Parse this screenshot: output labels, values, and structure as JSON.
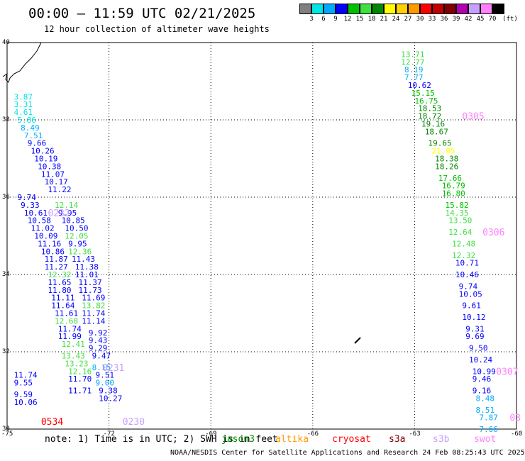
{
  "title": "00:00 – 11:59 UTC 02/21/2025",
  "subtitle": "12 hour collection of altimeter wave heights",
  "colorbar": {
    "unit": "(ft)",
    "labels": [
      "3",
      "6",
      "9",
      "12",
      "15",
      "18",
      "21",
      "24",
      "27",
      "30",
      "33",
      "36",
      "39",
      "42",
      "45",
      "70"
    ],
    "colors": [
      "#808080",
      "#00e5e5",
      "#00aaff",
      "#0000ff",
      "#00c000",
      "#40e040",
      "#008800",
      "#ffff00",
      "#ffd000",
      "#ff9900",
      "#ff0000",
      "#c00000",
      "#800000",
      "#b000b0",
      "#c8a0ff",
      "#ff80ff",
      "#000000"
    ]
  },
  "note_text": "note: 1) Time is in UTC; 2) SWH is in feet",
  "satellites": [
    {
      "name": "jason3",
      "color": "#008800"
    },
    {
      "name": "altika",
      "color": "#ff9900"
    },
    {
      "name": "cryosat",
      "color": "#ff0000"
    },
    {
      "name": "s3a",
      "color": "#800000"
    },
    {
      "name": "s3b",
      "color": "#c8a0ff"
    },
    {
      "name": "swot",
      "color": "#ff80ff"
    }
  ],
  "footer": "NOAA/NESDIS Center for Satellite Applications and Research    24 Feb 08:25:43 UTC 2025",
  "chart_data": {
    "type": "scatter",
    "xlim": [
      -75,
      -60
    ],
    "ylim": [
      30,
      40
    ],
    "x_ticks": [
      "-75",
      "-72",
      "-69",
      "-66",
      "-63",
      "-60"
    ],
    "y_ticks": [
      "40",
      "38",
      "36",
      "34",
      "32",
      "30"
    ],
    "grid": true,
    "units": "ft",
    "times": [
      {
        "label": "0232",
        "x": -73.8,
        "y": 35.6,
        "color": "#c8a0ff"
      },
      {
        "label": "0231",
        "x": -72.2,
        "y": 31.6,
        "color": "#c8a0ff"
      },
      {
        "label": "0230",
        "x": -71.6,
        "y": 30.2,
        "color": "#c8a0ff"
      },
      {
        "label": "0534",
        "x": -74.0,
        "y": 30.2,
        "color": "#ff0000"
      },
      {
        "label": "0305",
        "x": -61.6,
        "y": 38.1,
        "color": "#ff80ff"
      },
      {
        "label": "0306",
        "x": -61.0,
        "y": 35.1,
        "color": "#ff80ff"
      },
      {
        "label": "0307",
        "x": -60.6,
        "y": 31.5,
        "color": "#ff80ff"
      },
      {
        "label": "03",
        "x": -60.2,
        "y": 30.3,
        "color": "#ff80ff"
      }
    ],
    "series": [
      {
        "name": "track-a",
        "points": [
          {
            "x": -74.8,
            "y": 38.6,
            "v": 3.87,
            "c": "#00e5e5"
          },
          {
            "x": -74.8,
            "y": 38.4,
            "v": 3.31,
            "c": "#00e5e5"
          },
          {
            "x": -74.8,
            "y": 38.2,
            "v": 4.61,
            "c": "#00e5e5"
          },
          {
            "x": -74.7,
            "y": 38.0,
            "v": 5.86,
            "c": "#00e5e5"
          },
          {
            "x": -74.6,
            "y": 37.8,
            "v": 8.49,
            "c": "#00aaff"
          },
          {
            "x": -74.5,
            "y": 37.6,
            "v": 7.51,
            "c": "#00aaff"
          },
          {
            "x": -74.4,
            "y": 37.4,
            "v": 9.66,
            "c": "#0000ff"
          },
          {
            "x": -74.3,
            "y": 37.2,
            "v": 10.26,
            "c": "#0000ff"
          },
          {
            "x": -74.2,
            "y": 37.0,
            "v": 10.19,
            "c": "#0000ff"
          },
          {
            "x": -74.1,
            "y": 36.8,
            "v": 10.38,
            "c": "#0000ff"
          },
          {
            "x": -74.0,
            "y": 36.6,
            "v": 11.07,
            "c": "#0000ff"
          },
          {
            "x": -73.9,
            "y": 36.4,
            "v": 10.17,
            "c": "#0000ff"
          },
          {
            "x": -73.8,
            "y": 36.2,
            "v": 11.22,
            "c": "#0000ff"
          },
          {
            "x": -73.6,
            "y": 35.8,
            "v": 12.14,
            "c": "#40e040"
          },
          {
            "x": -73.5,
            "y": 35.6,
            "v": 9.95,
            "c": "#0000ff"
          },
          {
            "x": -73.4,
            "y": 35.4,
            "v": 10.85,
            "c": "#0000ff"
          },
          {
            "x": -73.3,
            "y": 35.2,
            "v": 10.5,
            "c": "#0000ff"
          },
          {
            "x": -73.3,
            "y": 35.0,
            "v": 12.05,
            "c": "#40e040"
          },
          {
            "x": -73.2,
            "y": 34.8,
            "v": 9.95,
            "c": "#0000ff"
          },
          {
            "x": -73.2,
            "y": 34.6,
            "v": 12.36,
            "c": "#40e040"
          },
          {
            "x": -73.1,
            "y": 34.4,
            "v": 11.43,
            "c": "#0000ff"
          },
          {
            "x": -73.0,
            "y": 34.2,
            "v": 11.38,
            "c": "#0000ff"
          },
          {
            "x": -73.0,
            "y": 34.0,
            "v": 11.01,
            "c": "#0000ff"
          },
          {
            "x": -72.9,
            "y": 33.8,
            "v": 11.37,
            "c": "#0000ff"
          },
          {
            "x": -72.9,
            "y": 33.6,
            "v": 11.73,
            "c": "#0000ff"
          },
          {
            "x": -72.8,
            "y": 33.4,
            "v": 11.69,
            "c": "#0000ff"
          },
          {
            "x": -72.8,
            "y": 33.2,
            "v": 13.82,
            "c": "#40e040"
          },
          {
            "x": -72.8,
            "y": 33.0,
            "v": 11.74,
            "c": "#0000ff"
          },
          {
            "x": -72.8,
            "y": 32.8,
            "v": 11.14,
            "c": "#0000ff"
          },
          {
            "x": -72.6,
            "y": 32.5,
            "v": 9.92,
            "c": "#0000ff"
          },
          {
            "x": -72.6,
            "y": 32.3,
            "v": 9.43,
            "c": "#0000ff"
          },
          {
            "x": -72.6,
            "y": 32.1,
            "v": 9.29,
            "c": "#0000ff"
          },
          {
            "x": -72.5,
            "y": 31.9,
            "v": 9.47,
            "c": "#0000ff"
          },
          {
            "x": -72.5,
            "y": 31.6,
            "v": 8.15,
            "c": "#00aaff"
          },
          {
            "x": -72.4,
            "y": 31.4,
            "v": 9.51,
            "c": "#0000ff"
          },
          {
            "x": -72.4,
            "y": 31.2,
            "v": 9.0,
            "c": "#00aaff"
          },
          {
            "x": -72.3,
            "y": 31.0,
            "v": 9.38,
            "c": "#0000ff"
          },
          {
            "x": -72.3,
            "y": 30.8,
            "v": 10.27,
            "c": "#0000ff"
          }
        ]
      },
      {
        "name": "track-b",
        "points": [
          {
            "x": -74.7,
            "y": 36.0,
            "v": 9.74,
            "c": "#0000ff"
          },
          {
            "x": -74.6,
            "y": 35.8,
            "v": 9.33,
            "c": "#0000ff"
          },
          {
            "x": -74.5,
            "y": 35.6,
            "v": 10.61,
            "c": "#0000ff"
          },
          {
            "x": -74.4,
            "y": 35.4,
            "v": 10.58,
            "c": "#0000ff"
          },
          {
            "x": -74.3,
            "y": 35.2,
            "v": 11.02,
            "c": "#0000ff"
          },
          {
            "x": -74.2,
            "y": 35.0,
            "v": 10.09,
            "c": "#0000ff"
          },
          {
            "x": -74.1,
            "y": 34.8,
            "v": 11.16,
            "c": "#0000ff"
          },
          {
            "x": -74.0,
            "y": 34.6,
            "v": 10.86,
            "c": "#0000ff"
          },
          {
            "x": -73.9,
            "y": 34.4,
            "v": 11.87,
            "c": "#0000ff"
          },
          {
            "x": -73.9,
            "y": 34.2,
            "v": 11.27,
            "c": "#0000ff"
          },
          {
            "x": -73.8,
            "y": 34.0,
            "v": 12.32,
            "c": "#40e040"
          },
          {
            "x": -73.8,
            "y": 33.8,
            "v": 11.65,
            "c": "#0000ff"
          },
          {
            "x": -73.8,
            "y": 33.6,
            "v": 11.8,
            "c": "#0000ff"
          },
          {
            "x": -73.7,
            "y": 33.4,
            "v": 11.11,
            "c": "#0000ff"
          },
          {
            "x": -73.7,
            "y": 33.2,
            "v": 11.64,
            "c": "#0000ff"
          },
          {
            "x": -73.6,
            "y": 33.0,
            "v": 11.61,
            "c": "#0000ff"
          },
          {
            "x": -73.6,
            "y": 32.8,
            "v": 12.68,
            "c": "#40e040"
          },
          {
            "x": -73.5,
            "y": 32.6,
            "v": 11.74,
            "c": "#0000ff"
          },
          {
            "x": -73.5,
            "y": 32.4,
            "v": 11.99,
            "c": "#0000ff"
          },
          {
            "x": -73.4,
            "y": 32.2,
            "v": 12.41,
            "c": "#40e040"
          },
          {
            "x": -73.4,
            "y": 31.9,
            "v": 13.43,
            "c": "#40e040"
          },
          {
            "x": -73.3,
            "y": 31.7,
            "v": 13.23,
            "c": "#40e040"
          },
          {
            "x": -73.2,
            "y": 31.5,
            "v": 12.16,
            "c": "#40e040"
          },
          {
            "x": -73.2,
            "y": 31.3,
            "v": 11.7,
            "c": "#0000ff"
          },
          {
            "x": -73.2,
            "y": 31.0,
            "v": 11.71,
            "c": "#0000ff"
          }
        ]
      },
      {
        "name": "track-c",
        "points": [
          {
            "x": -74.8,
            "y": 31.4,
            "v": 11.74,
            "c": "#0000ff"
          },
          {
            "x": -74.8,
            "y": 31.2,
            "v": 9.55,
            "c": "#0000ff"
          },
          {
            "x": -74.8,
            "y": 30.9,
            "v": 9.59,
            "c": "#0000ff"
          },
          {
            "x": -74.8,
            "y": 30.7,
            "v": 10.06,
            "c": "#0000ff"
          }
        ]
      },
      {
        "name": "track-d",
        "points": [
          {
            "x": -63.4,
            "y": 39.7,
            "v": 13.71,
            "c": "#40e040"
          },
          {
            "x": -63.4,
            "y": 39.5,
            "v": 12.77,
            "c": "#40e040"
          },
          {
            "x": -63.3,
            "y": 39.3,
            "v": 8.19,
            "c": "#00aaff"
          },
          {
            "x": -63.3,
            "y": 39.1,
            "v": 7.77,
            "c": "#00aaff"
          },
          {
            "x": -63.2,
            "y": 38.9,
            "v": 10.62,
            "c": "#0000ff"
          },
          {
            "x": -63.1,
            "y": 38.7,
            "v": 15.15,
            "c": "#00c000"
          },
          {
            "x": -63.0,
            "y": 38.5,
            "v": 16.75,
            "c": "#00c000"
          },
          {
            "x": -62.9,
            "y": 38.3,
            "v": 18.53,
            "c": "#008800"
          },
          {
            "x": -62.9,
            "y": 38.1,
            "v": 18.72,
            "c": "#008800"
          },
          {
            "x": -62.8,
            "y": 37.9,
            "v": 19.16,
            "c": "#008800"
          },
          {
            "x": -62.7,
            "y": 37.7,
            "v": 18.67,
            "c": "#008800"
          },
          {
            "x": -62.6,
            "y": 37.4,
            "v": 19.65,
            "c": "#008800"
          },
          {
            "x": -62.5,
            "y": 37.2,
            "v": 21.95,
            "c": "#ffff00"
          },
          {
            "x": -62.4,
            "y": 37.0,
            "v": 18.38,
            "c": "#008800"
          },
          {
            "x": -62.4,
            "y": 36.8,
            "v": 18.26,
            "c": "#008800"
          },
          {
            "x": -62.3,
            "y": 36.5,
            "v": 17.66,
            "c": "#00c000"
          },
          {
            "x": -62.2,
            "y": 36.3,
            "v": 16.79,
            "c": "#00c000"
          },
          {
            "x": -62.2,
            "y": 36.1,
            "v": 16.8,
            "c": "#00c000"
          },
          {
            "x": -62.1,
            "y": 35.8,
            "v": 15.82,
            "c": "#00c000"
          },
          {
            "x": -62.1,
            "y": 35.6,
            "v": 14.35,
            "c": "#40e040"
          },
          {
            "x": -62.0,
            "y": 35.4,
            "v": 13.5,
            "c": "#40e040"
          },
          {
            "x": -62.0,
            "y": 35.1,
            "v": 12.64,
            "c": "#40e040"
          },
          {
            "x": -61.9,
            "y": 34.8,
            "v": 12.48,
            "c": "#40e040"
          },
          {
            "x": -61.9,
            "y": 34.5,
            "v": 12.32,
            "c": "#40e040"
          },
          {
            "x": -61.8,
            "y": 34.3,
            "v": 10.71,
            "c": "#0000ff"
          },
          {
            "x": -61.8,
            "y": 34.0,
            "v": 10.46,
            "c": "#0000ff"
          },
          {
            "x": -61.7,
            "y": 33.7,
            "v": 9.74,
            "c": "#0000ff"
          },
          {
            "x": -61.7,
            "y": 33.5,
            "v": 10.05,
            "c": "#0000ff"
          },
          {
            "x": -61.6,
            "y": 33.2,
            "v": 9.61,
            "c": "#0000ff"
          },
          {
            "x": -61.6,
            "y": 32.9,
            "v": 10.12,
            "c": "#0000ff"
          },
          {
            "x": -61.5,
            "y": 32.6,
            "v": 9.31,
            "c": "#0000ff"
          },
          {
            "x": -61.5,
            "y": 32.4,
            "v": 9.69,
            "c": "#0000ff"
          },
          {
            "x": -61.4,
            "y": 32.1,
            "v": 9.5,
            "c": "#0000ff"
          },
          {
            "x": -61.4,
            "y": 31.8,
            "v": 10.24,
            "c": "#0000ff"
          },
          {
            "x": -61.3,
            "y": 31.5,
            "v": 10.99,
            "c": "#0000ff"
          },
          {
            "x": -61.3,
            "y": 31.3,
            "v": 9.46,
            "c": "#0000ff"
          },
          {
            "x": -61.3,
            "y": 31.0,
            "v": 9.16,
            "c": "#0000ff"
          },
          {
            "x": -61.2,
            "y": 30.8,
            "v": 8.48,
            "c": "#00aaff"
          },
          {
            "x": -61.2,
            "y": 30.5,
            "v": 8.51,
            "c": "#00aaff"
          },
          {
            "x": -61.1,
            "y": 30.3,
            "v": 7.87,
            "c": "#00aaff"
          },
          {
            "x": -61.1,
            "y": 30.0,
            "v": 7.66,
            "c": "#00aaff"
          }
        ]
      }
    ]
  }
}
